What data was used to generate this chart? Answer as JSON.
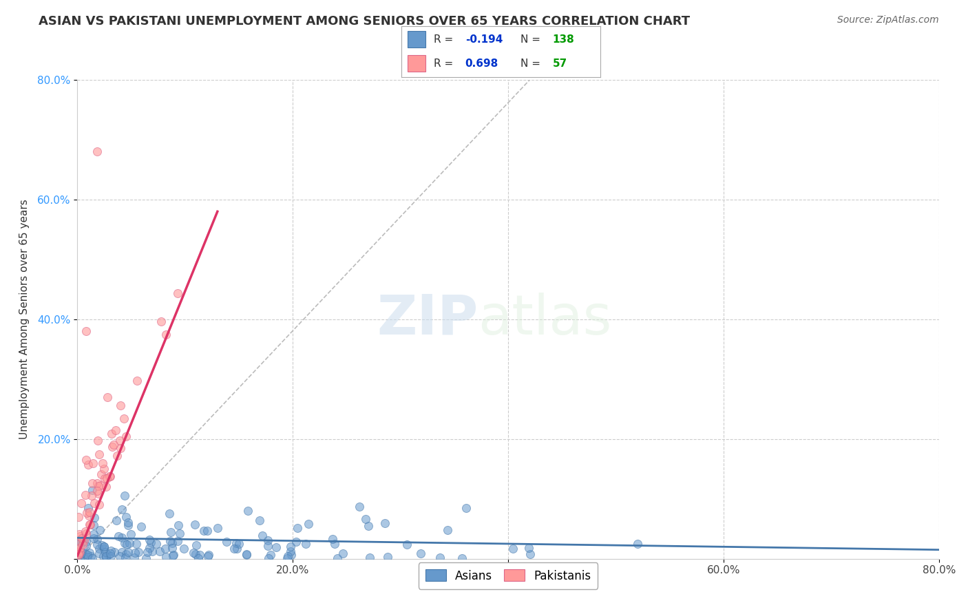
{
  "title": "ASIAN VS PAKISTANI UNEMPLOYMENT AMONG SENIORS OVER 65 YEARS CORRELATION CHART",
  "source": "Source: ZipAtlas.com",
  "ylabel": "Unemployment Among Seniors over 65 years",
  "xlim": [
    0.0,
    0.8
  ],
  "ylim": [
    0.0,
    0.8
  ],
  "xtick_labels": [
    "0.0%",
    "20.0%",
    "40.0%",
    "60.0%",
    "80.0%"
  ],
  "xtick_values": [
    0.0,
    0.2,
    0.4,
    0.6,
    0.8
  ],
  "ytick_labels": [
    "",
    "20.0%",
    "40.0%",
    "60.0%",
    "80.0%"
  ],
  "ytick_values": [
    0.0,
    0.2,
    0.4,
    0.6,
    0.8
  ],
  "asian_color": "#6699cc",
  "pakistani_color": "#ff9999",
  "asian_edge": "#4477aa",
  "pakistani_edge": "#dd6688",
  "trend_asian_color": "#4477aa",
  "trend_pakistani_color": "#dd3366",
  "R_asian": -0.194,
  "N_asian": 138,
  "R_pakistani": 0.698,
  "N_pakistani": 57,
  "legend_R_color": "#0033cc",
  "legend_N_color": "#009900",
  "watermark_zip": "ZIP",
  "watermark_atlas": "atlas",
  "background_color": "#ffffff",
  "grid_color": "#cccccc",
  "title_fontsize": 13,
  "axis_label_fontsize": 11,
  "tick_fontsize": 11
}
